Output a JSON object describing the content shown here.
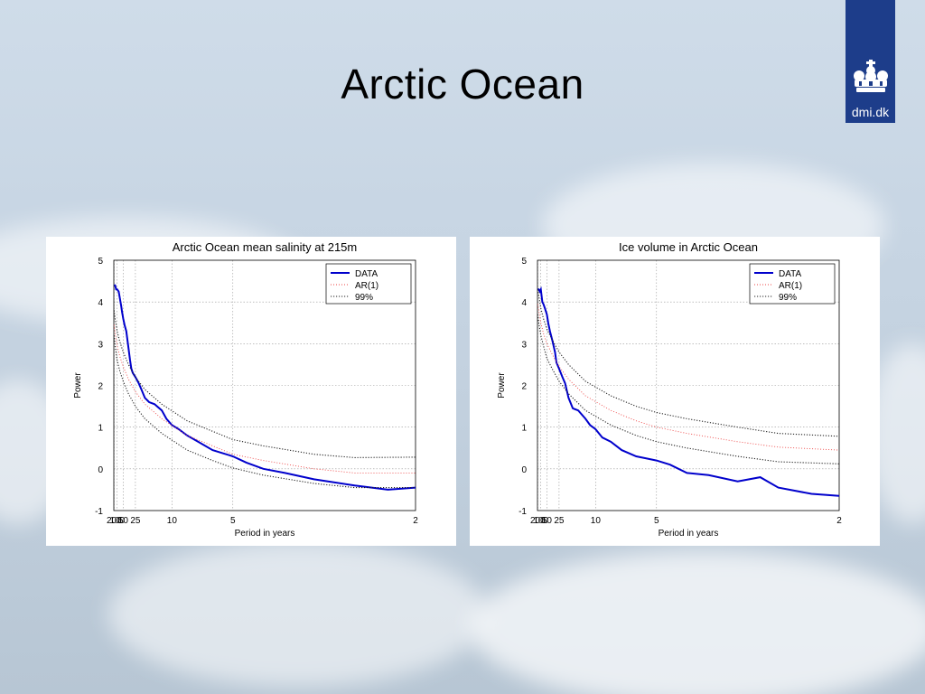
{
  "slide": {
    "title": "Arctic Ocean"
  },
  "logo": {
    "text": "dmi.dk",
    "icon": "crown-icon"
  },
  "colors": {
    "data": "#0000cc",
    "ar1": "#ee4444",
    "ci99": "#222222",
    "panel": "#ffffff",
    "logo_bg": "#1d3d8a"
  },
  "chart_data": [
    {
      "type": "line",
      "title": "Arctic Ocean mean salinity at 215m",
      "xlabel": "Period in years",
      "ylabel": "Power",
      "x_scale": "reciprocal",
      "x_ticks": [
        200,
        100,
        50,
        25,
        10,
        5,
        2
      ],
      "xlim": [
        220,
        2
      ],
      "ylim": [
        -1,
        5
      ],
      "y_ticks": [
        -1,
        0,
        1,
        2,
        3,
        4,
        5
      ],
      "grid": true,
      "legend_position": "top-right",
      "legend": [
        "DATA",
        "AR(1)",
        "99%"
      ],
      "series": [
        {
          "name": "DATA",
          "style": "solid",
          "x": [
            200,
            150,
            120,
            100,
            80,
            70,
            60,
            55,
            50,
            45,
            40,
            35,
            32,
            30,
            28,
            25,
            22,
            20,
            18,
            16,
            14,
            12,
            11,
            10,
            9,
            8,
            7,
            6,
            5,
            4.5,
            4,
            3.5,
            3,
            2.5,
            2.2,
            2
          ],
          "y": [
            4.4,
            4.4,
            4.3,
            4.3,
            4.25,
            4.1,
            3.9,
            3.75,
            3.6,
            3.45,
            3.3,
            2.9,
            2.6,
            2.4,
            2.3,
            2.2,
            2.05,
            1.9,
            1.7,
            1.6,
            1.55,
            1.4,
            1.2,
            1.05,
            0.95,
            0.8,
            0.65,
            0.45,
            0.3,
            0.15,
            0.0,
            -0.1,
            -0.25,
            -0.4,
            -0.5,
            -0.45
          ]
        },
        {
          "name": "AR(1)",
          "style": "dotted",
          "x": [
            200,
            150,
            100,
            70,
            50,
            35,
            25,
            18,
            12,
            8,
            6,
            5,
            4,
            3,
            2.5,
            2
          ],
          "y": [
            3.45,
            3.25,
            2.95,
            2.7,
            2.45,
            2.15,
            1.85,
            1.55,
            1.2,
            0.8,
            0.55,
            0.35,
            0.2,
            0.0,
            -0.1,
            -0.1
          ]
        },
        {
          "name": "99%",
          "style": "dotted",
          "x": [
            200,
            150,
            100,
            70,
            50,
            35,
            25,
            18,
            12,
            8,
            6,
            5,
            4,
            3,
            2.5,
            2
          ],
          "y": [
            3.8,
            3.6,
            3.3,
            3.05,
            2.8,
            2.5,
            2.2,
            1.9,
            1.55,
            1.15,
            0.9,
            0.7,
            0.55,
            0.35,
            0.27,
            0.28
          ]
        },
        {
          "name": "",
          "style": "dotted",
          "x": [
            200,
            150,
            100,
            70,
            50,
            35,
            25,
            18,
            12,
            8,
            6,
            5,
            4,
            3,
            2.5,
            2
          ],
          "y": [
            3.2,
            2.95,
            2.6,
            2.35,
            2.1,
            1.8,
            1.5,
            1.2,
            0.85,
            0.45,
            0.2,
            0.02,
            -0.15,
            -0.35,
            -0.45,
            -0.45
          ]
        }
      ]
    },
    {
      "type": "line",
      "title": "Ice volume in Arctic Ocean",
      "xlabel": "Period in years",
      "ylabel": "Power",
      "x_scale": "reciprocal",
      "x_ticks": [
        200,
        100,
        50,
        25,
        10,
        5,
        2
      ],
      "xlim": [
        220,
        2
      ],
      "ylim": [
        -1,
        5
      ],
      "y_ticks": [
        -1,
        0,
        1,
        2,
        3,
        4,
        5
      ],
      "grid": true,
      "legend_position": "top-right",
      "legend": [
        "DATA",
        "AR(1)",
        "99%"
      ],
      "series": [
        {
          "name": "DATA",
          "style": "solid",
          "x": [
            200,
            150,
            120,
            100,
            80,
            70,
            60,
            50,
            45,
            40,
            35,
            30,
            28,
            25,
            22,
            20,
            18,
            16,
            14,
            12,
            11,
            10,
            9,
            8,
            7,
            6,
            5,
            4.5,
            4,
            3.5,
            3,
            2.7,
            2.5,
            2.2,
            2
          ],
          "y": [
            4.3,
            4.3,
            4.25,
            4.3,
            4.0,
            3.95,
            3.85,
            3.7,
            3.5,
            3.3,
            3.1,
            2.8,
            2.55,
            2.4,
            2.2,
            2.05,
            1.7,
            1.45,
            1.4,
            1.2,
            1.05,
            0.95,
            0.75,
            0.65,
            0.45,
            0.3,
            0.2,
            0.1,
            -0.1,
            -0.15,
            -0.3,
            -0.2,
            -0.45,
            -0.6,
            -0.65
          ]
        },
        {
          "name": "AR(1)",
          "style": "dotted",
          "x": [
            200,
            150,
            100,
            70,
            50,
            35,
            25,
            18,
            12,
            8,
            6,
            5,
            4,
            3,
            2.5,
            2
          ],
          "y": [
            3.95,
            3.8,
            3.5,
            3.25,
            3.0,
            2.75,
            2.45,
            2.15,
            1.75,
            1.4,
            1.15,
            1.0,
            0.85,
            0.65,
            0.52,
            0.45
          ]
        },
        {
          "name": "99%",
          "style": "dotted",
          "x": [
            200,
            150,
            100,
            70,
            50,
            35,
            25,
            18,
            12,
            8,
            6,
            5,
            4,
            3,
            2.5,
            2
          ],
          "y": [
            4.3,
            4.15,
            3.85,
            3.6,
            3.35,
            3.1,
            2.8,
            2.5,
            2.1,
            1.75,
            1.5,
            1.35,
            1.2,
            1.0,
            0.85,
            0.78
          ]
        },
        {
          "name": "",
          "style": "dotted",
          "x": [
            200,
            150,
            100,
            70,
            50,
            35,
            25,
            18,
            12,
            8,
            6,
            5,
            4,
            3,
            2.5,
            2
          ],
          "y": [
            3.7,
            3.5,
            3.2,
            2.95,
            2.65,
            2.4,
            2.1,
            1.8,
            1.4,
            1.05,
            0.8,
            0.65,
            0.5,
            0.3,
            0.17,
            0.12
          ]
        }
      ]
    }
  ]
}
